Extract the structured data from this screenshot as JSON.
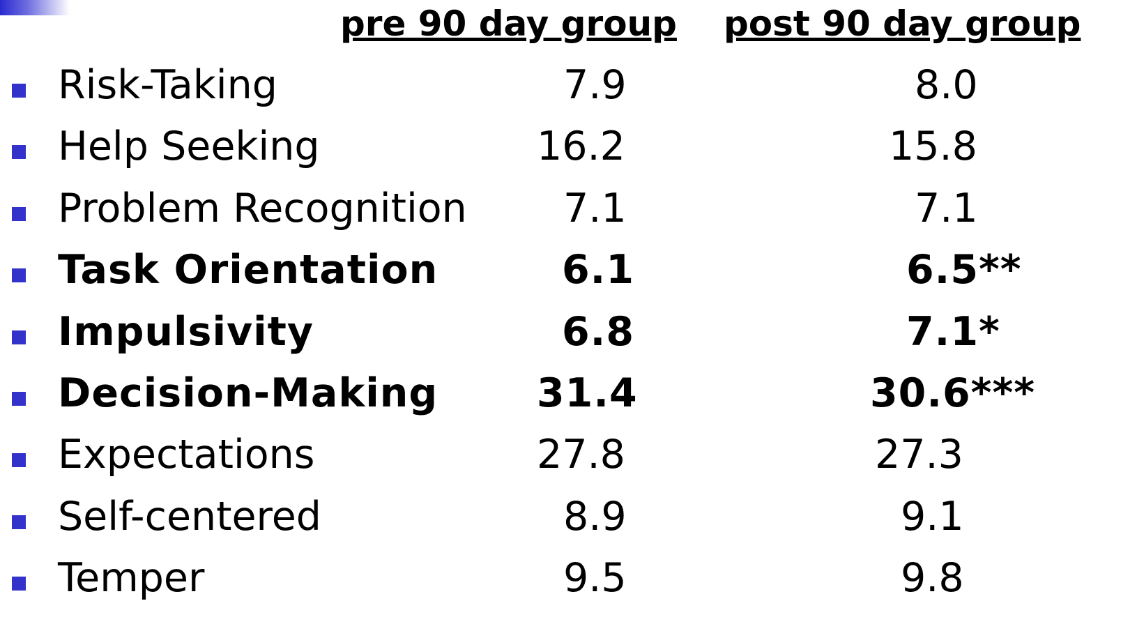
{
  "table": {
    "columns": [
      "pre 90 day group",
      "post 90 day group"
    ],
    "rows": [
      {
        "label": "Risk-Taking",
        "pre": "7.9",
        "post": "8.0",
        "bold": false
      },
      {
        "label": "Help Seeking",
        "pre": "16.2",
        "post": "15.8",
        "bold": false
      },
      {
        "label": "Problem Recognition",
        "pre": "7.1",
        "post": "7.1",
        "bold": false
      },
      {
        "label": "Task Orientation",
        "pre": "6.1",
        "post": "6.5**",
        "bold": true
      },
      {
        "label": "Impulsivity",
        "pre": "6.8",
        "post": "7.1*",
        "bold": true
      },
      {
        "label": "Decision-Making",
        "pre": "31.4",
        "post": "30.6***",
        "bold": true
      },
      {
        "label": "Expectations",
        "pre": "27.8",
        "post": "27.3",
        "bold": false
      },
      {
        "label": "Self-centered",
        "pre": "8.9",
        "post": "9.1",
        "bold": false
      },
      {
        "label": "Temper",
        "pre": "9.5",
        "post": "9.8",
        "bold": false
      }
    ]
  }
}
